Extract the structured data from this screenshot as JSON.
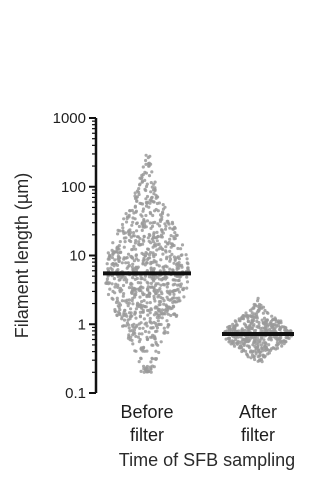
{
  "chart_data": {
    "type": "scatter",
    "subtype": "dot-plot-with-median",
    "title": "",
    "xlabel": "Time of SFB sampling",
    "ylabel": "Filament length (µm)",
    "yscale": "log",
    "ylim": [
      0.1,
      1000
    ],
    "yticks": [
      0.1,
      1,
      10,
      100,
      1000
    ],
    "ytick_labels": [
      "0.1",
      "1",
      "10",
      "100",
      "1000"
    ],
    "grid": false,
    "categories": [
      {
        "line1": "Before",
        "line2": "filter"
      },
      {
        "line1": "After",
        "line2": "filter"
      }
    ],
    "series": [
      {
        "category": "Before filter",
        "median": 5.5,
        "min": 0.2,
        "max": 300,
        "color": "#9a9a9a"
      },
      {
        "category": "After filter",
        "median": 0.72,
        "min": 0.28,
        "max": 2.6,
        "color": "#9a9a9a"
      }
    ],
    "median_color": "#111111",
    "axis_color": "#111111"
  }
}
